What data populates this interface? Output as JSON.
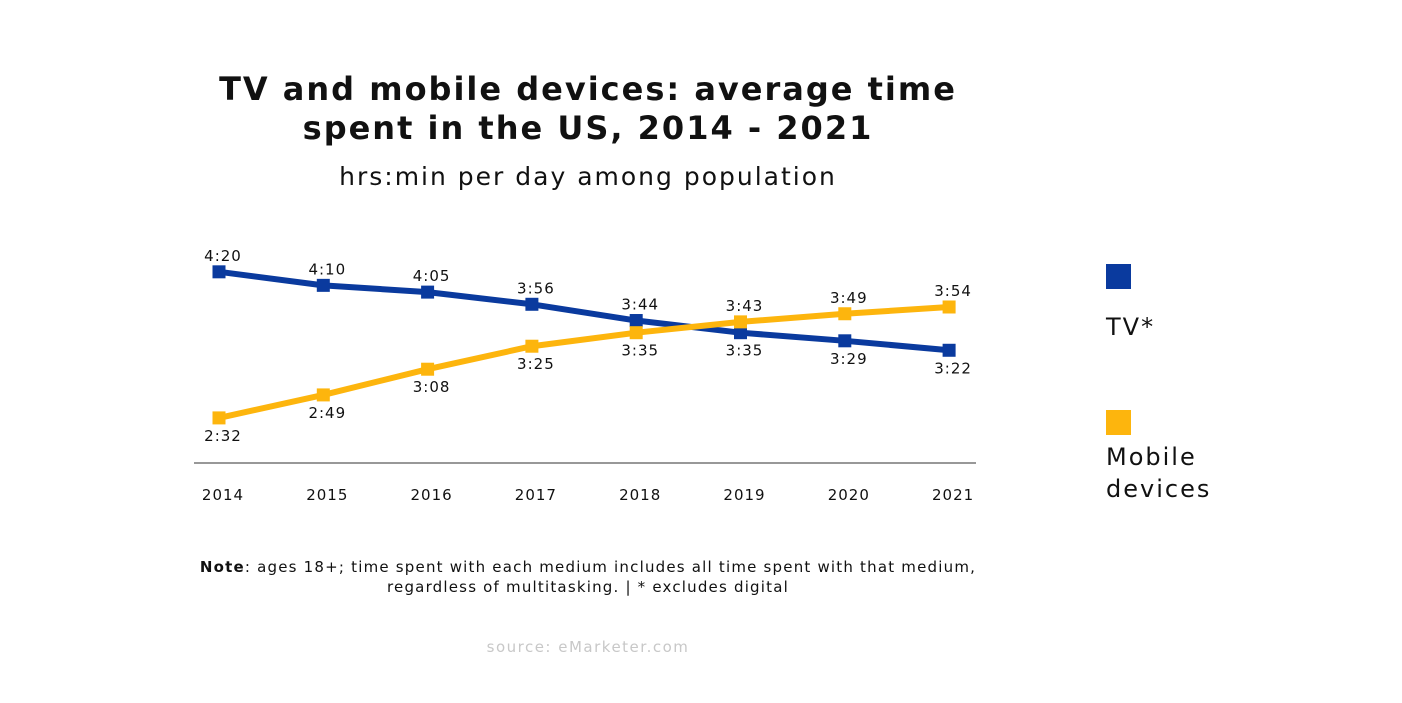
{
  "colors": {
    "tv": "#0a3a9e",
    "mobile": "#fdb50d",
    "axis": "#777777",
    "text": "#111111",
    "source": "#c8c8c8"
  },
  "legend": [
    {
      "label": "TV*"
    },
    {
      "label": "Mobile\ndevices"
    }
  ],
  "note": {
    "bold": "Note",
    "text": ": ages 18+; time spent with each medium includes all time spent with that medium, regardless of multitasking. | * excludes digital"
  },
  "source": "source: eMarketer.com",
  "chart_data": {
    "type": "line",
    "title": "TV and mobile devices: average time spent in the US, 2014 - 2021",
    "subtitle": "hrs:min per day among population",
    "xlabel": "",
    "ylabel": "",
    "categories": [
      "2014",
      "2015",
      "2016",
      "2017",
      "2018",
      "2019",
      "2020",
      "2021"
    ],
    "series": [
      {
        "name": "TV*",
        "values": [
          260,
          250,
          245,
          236,
          224,
          215,
          209,
          202
        ],
        "labels": [
          "4:20",
          "4:10",
          "4:05",
          "3:56",
          "3:44",
          "3:35",
          "3:29",
          "3:22"
        ]
      },
      {
        "name": "Mobile devices",
        "values": [
          152,
          169,
          188,
          205,
          215,
          223,
          229,
          234
        ],
        "labels": [
          "2:32",
          "2:49",
          "3:08",
          "3:25",
          "3:35",
          "3:43",
          "3:49",
          "3:54"
        ]
      }
    ],
    "value_unit": "minutes per day",
    "grid": false,
    "legend_position": "right"
  }
}
